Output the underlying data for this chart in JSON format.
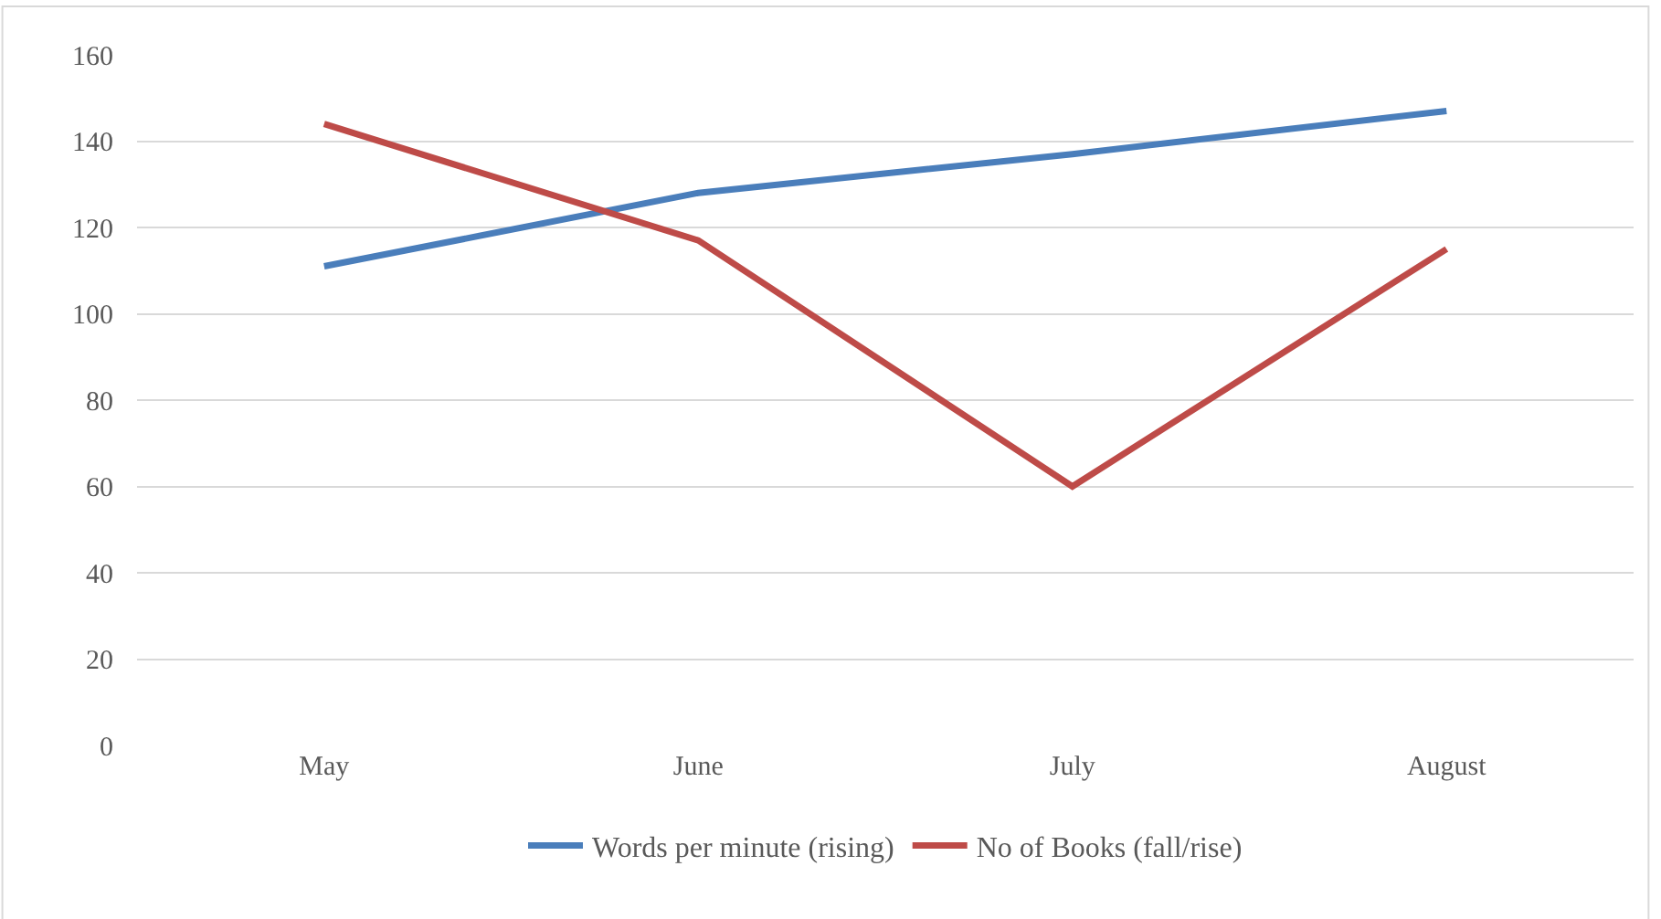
{
  "chart_data": {
    "type": "line",
    "categories": [
      "May",
      "June",
      "July",
      "August"
    ],
    "series": [
      {
        "name": "Words per minute (rising)",
        "color": "#4a7ebb",
        "values": [
          111,
          128,
          137,
          147
        ]
      },
      {
        "name": "No of Books (fall/rise)",
        "color": "#be4b48",
        "values": [
          144,
          117,
          60,
          115
        ]
      }
    ],
    "ylim": [
      0,
      160
    ],
    "yticks": [
      0,
      20,
      40,
      60,
      80,
      100,
      120,
      140,
      160
    ],
    "grid": "y",
    "legend": "bottom",
    "marker": "none",
    "line_style": "solid"
  }
}
